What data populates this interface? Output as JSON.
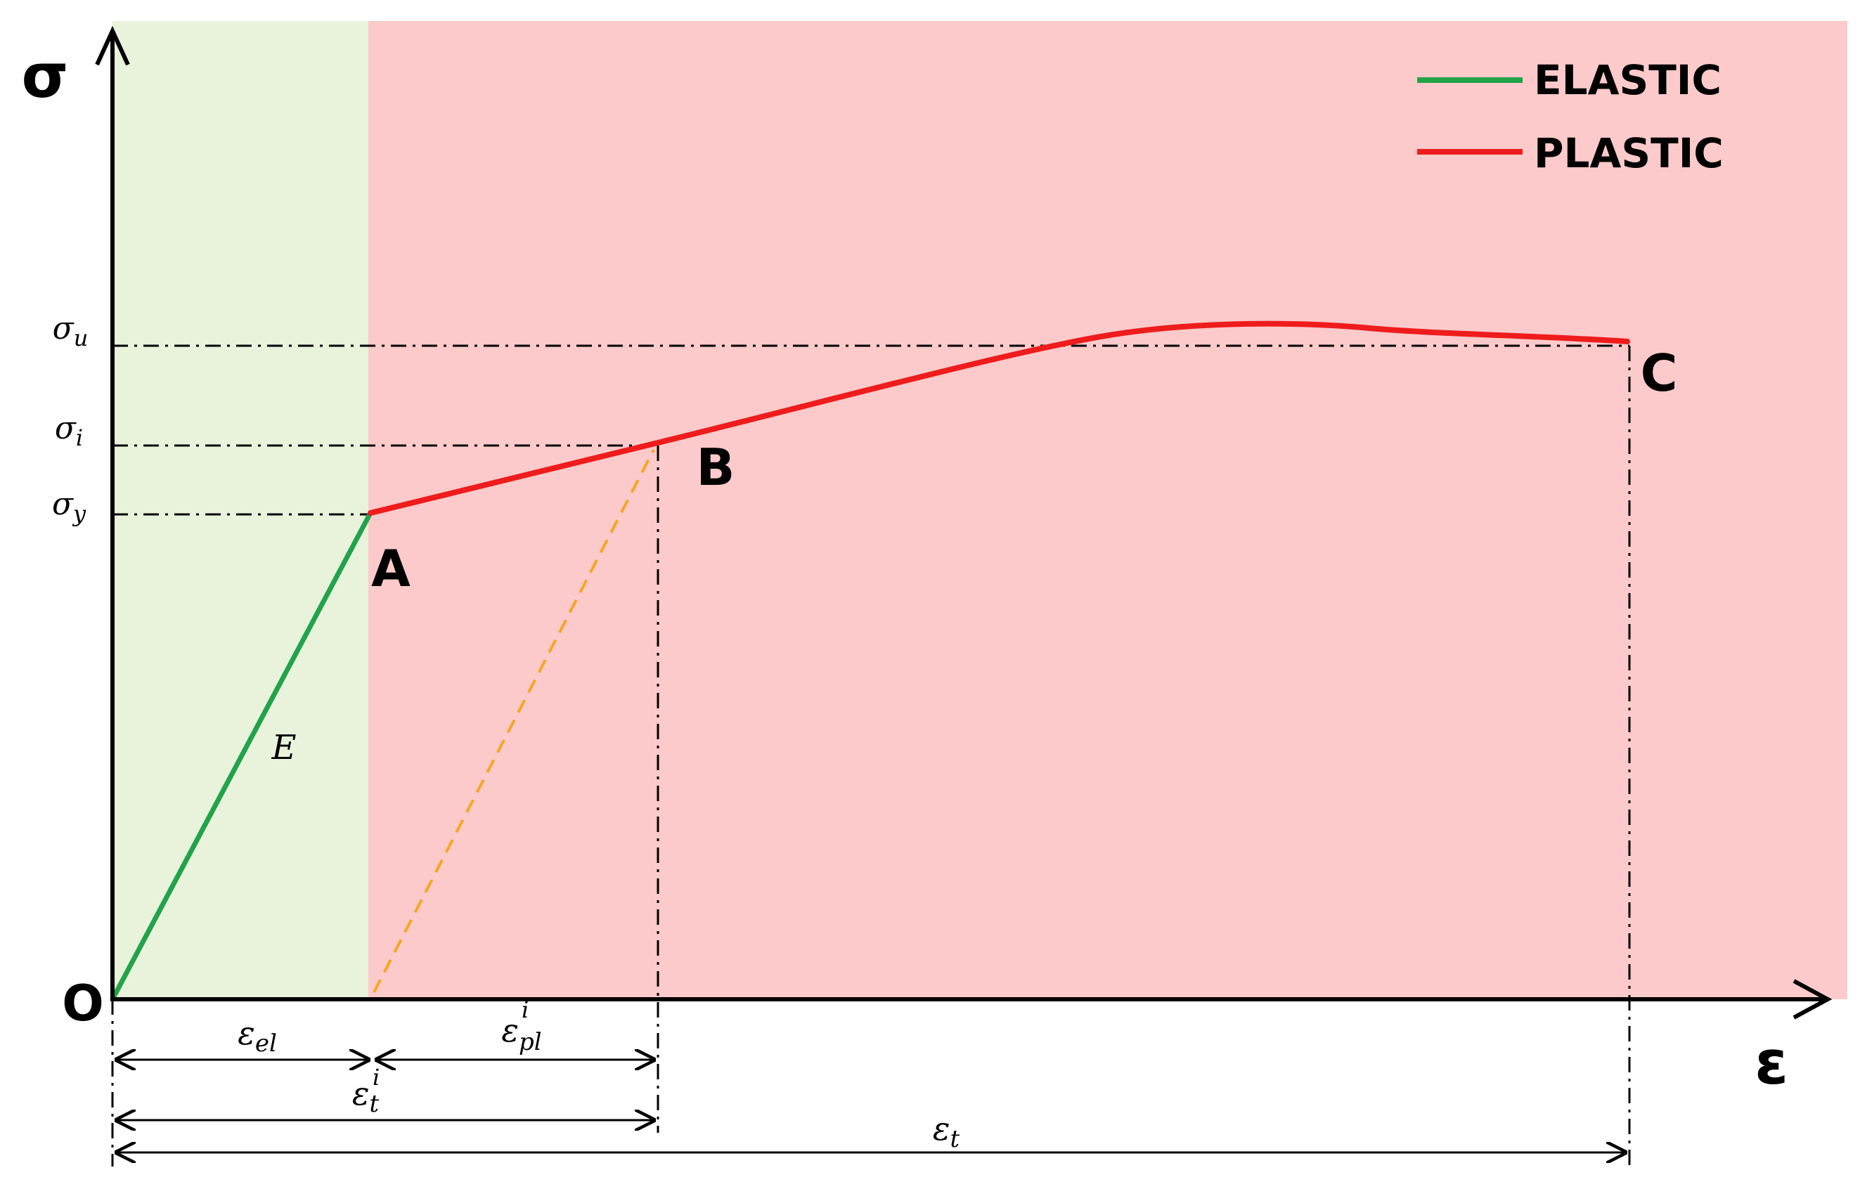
{
  "axes": {
    "y_label": "σ",
    "x_label": "ε",
    "origin_label": "O"
  },
  "regions": {
    "elastic_color": "#e9f3dc",
    "plastic_color": "#fccaca"
  },
  "legend": {
    "elastic": {
      "label": "ELASTIC",
      "color": "#21a34a"
    },
    "plastic": {
      "label": "PLASTIC",
      "color": "#ee1c1c"
    }
  },
  "points": {
    "a": "A",
    "b": "B",
    "c": "C"
  },
  "stress_levels": {
    "sigma_u": {
      "sym": "σ",
      "sub": "u"
    },
    "sigma_i": {
      "sym": "σ",
      "sub": "i"
    },
    "sigma_y": {
      "sym": "σ",
      "sub": "y"
    }
  },
  "elastic_modulus_label": "E",
  "strain_dims": {
    "eps_el": {
      "sym": "ε",
      "sub": "el"
    },
    "eps_pl_i": {
      "sym": "ε",
      "sub": "pl",
      "sup": "i"
    },
    "eps_t_i": {
      "sym": "ε",
      "sub": "t",
      "sup": "i"
    },
    "eps_t": {
      "sym": "ε",
      "sub": "t"
    }
  },
  "colors": {
    "unload_line": "#f5a623",
    "guide_line": "#000000"
  }
}
